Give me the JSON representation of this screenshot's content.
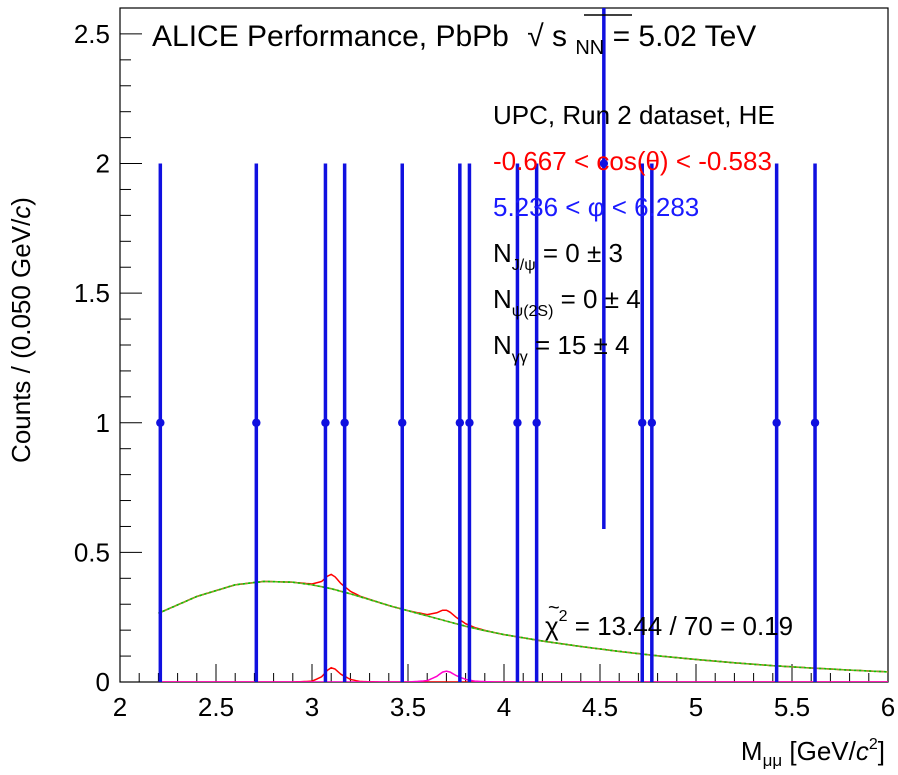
{
  "chart_data": {
    "type": "scatter",
    "title": "ALICE Performance, PbPb",
    "energy_label": {
      "sqrt_symbol": "√",
      "var": "s",
      "sub": "NN",
      "value": " = 5.02 TeV"
    },
    "xlabel": {
      "main": "M",
      "sub": "μμ",
      "unit_pre": " [GeV/",
      "unit_c": "c",
      "unit_sup": "2",
      "unit_post": "]"
    },
    "ylabel": {
      "pre": "Counts / (0.050 GeV/",
      "c": "c",
      "post": ")"
    },
    "xlim": [
      2,
      6
    ],
    "ylim": [
      0,
      2.6
    ],
    "xticks": [
      2,
      2.5,
      3,
      3.5,
      4,
      4.5,
      5,
      5.5,
      6
    ],
    "xtick_labels": [
      "2",
      "2.5",
      "3",
      "3.5",
      "4",
      "4.5",
      "5",
      "5.5",
      "6"
    ],
    "yticks": [
      0,
      0.5,
      1,
      1.5,
      2,
      2.5
    ],
    "ytick_labels": [
      "0",
      "0.5",
      "1",
      "1.5",
      "2",
      "2.5"
    ],
    "annotations": {
      "dataset": "UPC, Run 2 dataset, HE",
      "costheta": "-0.667 < cos(θ) < -0.583",
      "phi": "5.236 < φ < 6.283",
      "njpsi": {
        "main": "N",
        "sub": "J/ψ",
        "rest": " = 0 ± 3"
      },
      "npsi2s": {
        "main": "N",
        "sub": "ψ(2S)",
        "rest": " = 0 ± 4"
      },
      "ngg": {
        "main": "N",
        "sub": "γγ",
        "rest": " = 15 ± 4"
      },
      "chi2": {
        "sym": "χ",
        "sup": "2",
        "rest": " = 13.44 / 70 = 0.19"
      }
    },
    "colors": {
      "data": "#1010e0",
      "total_fit": "#ff0000",
      "background": "#00cc00",
      "total_curve": "#8a9a2a",
      "jpsi": "#ff0000",
      "psi2s": "#ff00cc",
      "text_red": "#ff0000",
      "text_blue": "#1a1aff"
    },
    "series": [
      {
        "name": "data",
        "points": [
          {
            "x": 2.21,
            "y": 1,
            "yerr_low": 1,
            "yerr_high": 1
          },
          {
            "x": 2.71,
            "y": 1,
            "yerr_low": 1,
            "yerr_high": 1
          },
          {
            "x": 3.07,
            "y": 1,
            "yerr_low": 1,
            "yerr_high": 1
          },
          {
            "x": 3.17,
            "y": 1,
            "yerr_low": 1,
            "yerr_high": 1
          },
          {
            "x": 3.47,
            "y": 1,
            "yerr_low": 1,
            "yerr_high": 1
          },
          {
            "x": 3.77,
            "y": 1,
            "yerr_low": 1,
            "yerr_high": 1
          },
          {
            "x": 3.82,
            "y": 1,
            "yerr_low": 1,
            "yerr_high": 1
          },
          {
            "x": 4.07,
            "y": 1,
            "yerr_low": 1,
            "yerr_high": 1
          },
          {
            "x": 4.17,
            "y": 1,
            "yerr_low": 1,
            "yerr_high": 1
          },
          {
            "x": 4.52,
            "y": 2,
            "yerr_low": 1.41,
            "yerr_high": 1.41
          },
          {
            "x": 4.72,
            "y": 1,
            "yerr_low": 1,
            "yerr_high": 1
          },
          {
            "x": 4.77,
            "y": 1,
            "yerr_low": 1,
            "yerr_high": 1
          },
          {
            "x": 5.42,
            "y": 1,
            "yerr_low": 1,
            "yerr_high": 1
          },
          {
            "x": 5.62,
            "y": 1,
            "yerr_low": 1,
            "yerr_high": 1
          }
        ]
      },
      {
        "name": "background",
        "x": [
          2.2,
          2.4,
          2.6,
          2.75,
          2.9,
          3.0,
          3.1,
          3.2,
          3.3,
          3.4,
          3.5,
          3.6,
          3.7,
          3.8,
          3.9,
          4.0,
          4.2,
          4.4,
          4.6,
          4.8,
          5.0,
          5.2,
          5.4,
          5.6,
          5.8,
          6.0
        ],
        "y": [
          0.265,
          0.33,
          0.375,
          0.388,
          0.385,
          0.375,
          0.36,
          0.34,
          0.318,
          0.295,
          0.275,
          0.255,
          0.235,
          0.215,
          0.198,
          0.183,
          0.158,
          0.137,
          0.118,
          0.101,
          0.087,
          0.074,
          0.063,
          0.054,
          0.046,
          0.039
        ]
      },
      {
        "name": "jpsi",
        "x": [
          2.9,
          3.0,
          3.05,
          3.08,
          3.1,
          3.12,
          3.15,
          3.2,
          3.25,
          3.35
        ],
        "y": [
          0,
          0.003,
          0.02,
          0.045,
          0.055,
          0.05,
          0.03,
          0.01,
          0.002,
          0
        ]
      },
      {
        "name": "psi2s",
        "x": [
          3.5,
          3.6,
          3.65,
          3.68,
          3.7,
          3.72,
          3.75,
          3.8,
          3.85,
          3.95
        ],
        "y": [
          0,
          0.005,
          0.022,
          0.038,
          0.042,
          0.038,
          0.025,
          0.01,
          0.003,
          0
        ]
      }
    ]
  }
}
